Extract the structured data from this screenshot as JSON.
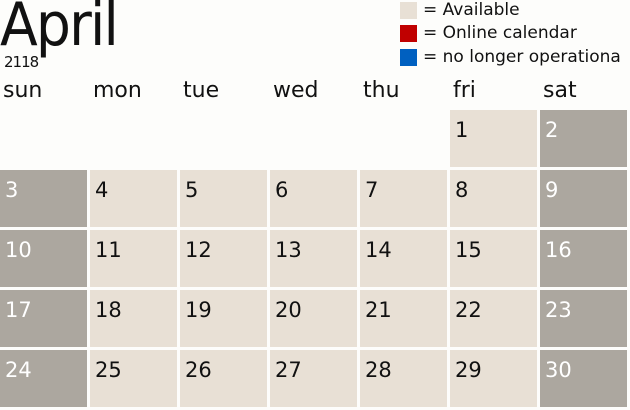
{
  "header": {
    "month": "April",
    "year": "2118"
  },
  "legend": [
    {
      "label": "= Available",
      "color": "#e8e0d5"
    },
    {
      "label": "= Online calendar",
      "color": "#c00000"
    },
    {
      "label": "= no longer operationa",
      "color": "#0060c0"
    }
  ],
  "colors": {
    "available": "#e8e0d5",
    "weekend": "#aca79f"
  },
  "weekdays": [
    "sun",
    "mon",
    "tue",
    "wed",
    "thu",
    "fri",
    "sat"
  ],
  "start_weekday_index": 5,
  "days": [
    "1",
    "2",
    "3",
    "4",
    "5",
    "6",
    "7",
    "8",
    "9",
    "10",
    "11",
    "12",
    "13",
    "14",
    "15",
    "16",
    "17",
    "18",
    "19",
    "20",
    "21",
    "22",
    "23",
    "24",
    "25",
    "26",
    "27",
    "28",
    "29",
    "30"
  ]
}
